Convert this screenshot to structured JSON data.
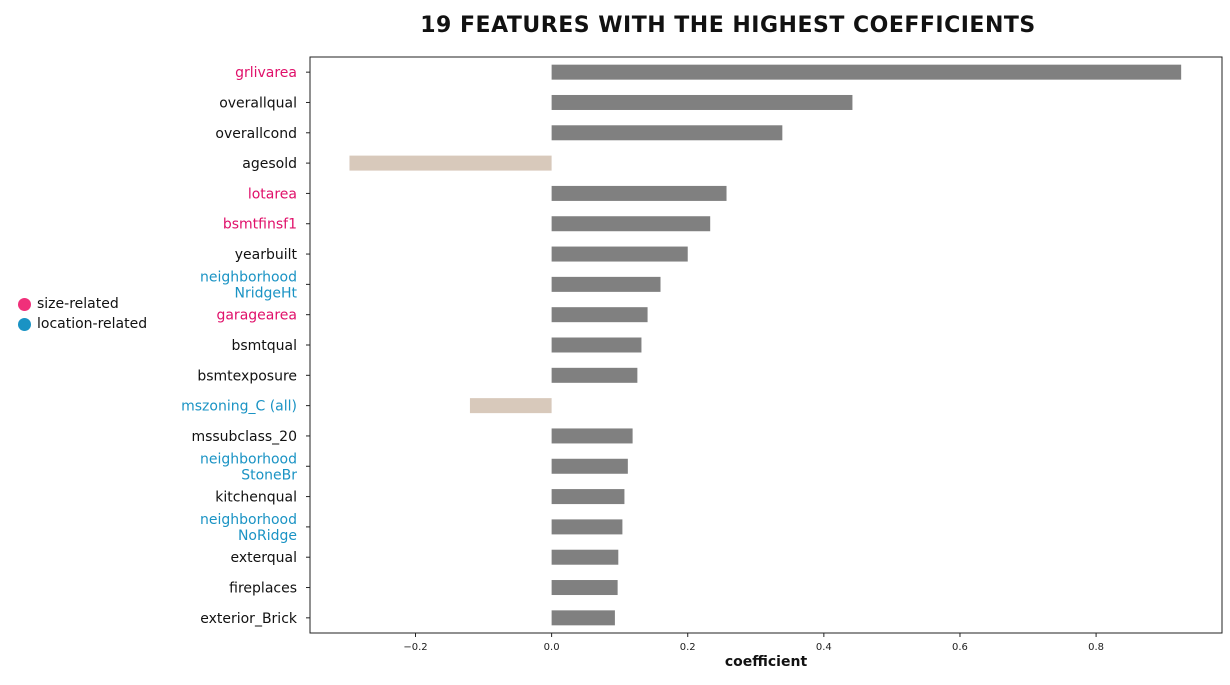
{
  "chart_data": {
    "type": "bar",
    "orientation": "horizontal",
    "title": "19 FEATURES WITH THE HIGHEST COEFFICIENTS",
    "xlabel": "coefficient",
    "ylabel": "",
    "xlim": [
      -0.355,
      0.985
    ],
    "xticks": [
      -0.2,
      0.0,
      0.2,
      0.4,
      0.6,
      0.8
    ],
    "xtick_labels": [
      "−0.2",
      "0.0",
      "0.2",
      "0.4",
      "0.6",
      "0.8"
    ],
    "grid": false,
    "positive_color": "#808080",
    "negative_color": "#d8c9bb",
    "categories": [
      {
        "label": [
          "grlivarea"
        ],
        "value": 0.925,
        "group": "size-related"
      },
      {
        "label": [
          "overallqual"
        ],
        "value": 0.442,
        "group": "other"
      },
      {
        "label": [
          "overallcond"
        ],
        "value": 0.339,
        "group": "other"
      },
      {
        "label": [
          "agesold"
        ],
        "value": -0.297,
        "group": "other"
      },
      {
        "label": [
          "lotarea"
        ],
        "value": 0.257,
        "group": "size-related"
      },
      {
        "label": [
          "bsmtfinsf1"
        ],
        "value": 0.233,
        "group": "size-related"
      },
      {
        "label": [
          "yearbuilt"
        ],
        "value": 0.2,
        "group": "other"
      },
      {
        "label": [
          "neighborhood",
          "NridgeHt"
        ],
        "value": 0.16,
        "group": "location-related"
      },
      {
        "label": [
          "garagearea"
        ],
        "value": 0.141,
        "group": "size-related"
      },
      {
        "label": [
          "bsmtqual"
        ],
        "value": 0.132,
        "group": "other"
      },
      {
        "label": [
          "bsmtexposure"
        ],
        "value": 0.126,
        "group": "other"
      },
      {
        "label": [
          "mszoning_C (all)"
        ],
        "value": -0.12,
        "group": "location-related"
      },
      {
        "label": [
          "mssubclass_20"
        ],
        "value": 0.119,
        "group": "other"
      },
      {
        "label": [
          "neighborhood",
          "StoneBr"
        ],
        "value": 0.112,
        "group": "location-related"
      },
      {
        "label": [
          "kitchenqual"
        ],
        "value": 0.107,
        "group": "other"
      },
      {
        "label": [
          "neighborhood",
          "NoRidge"
        ],
        "value": 0.104,
        "group": "location-related"
      },
      {
        "label": [
          "exterqual"
        ],
        "value": 0.098,
        "group": "other"
      },
      {
        "label": [
          "fireplaces"
        ],
        "value": 0.097,
        "group": "other"
      },
      {
        "label": [
          "exterior_Brick"
        ],
        "value": 0.093,
        "group": "other"
      }
    ],
    "label_colors": {
      "size-related": "#e0106a",
      "location-related": "#1a93c4",
      "other": "#111111"
    },
    "legend": {
      "placement": "left",
      "entries": [
        {
          "name": "size-related",
          "color": "#f0307a"
        },
        {
          "name": "location-related",
          "color": "#1a93c4"
        }
      ]
    }
  }
}
